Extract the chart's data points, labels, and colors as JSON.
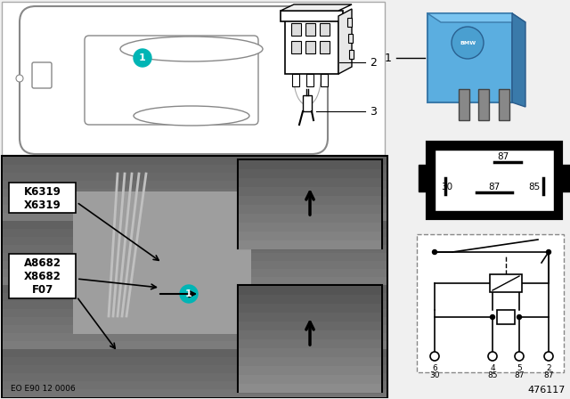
{
  "bg": "#f0f0f0",
  "white": "#ffffff",
  "black": "#000000",
  "teal": "#00b5b5",
  "blue_relay": "#5baee0",
  "gray_photo": "#888888",
  "footer": "EO E90 12 0006",
  "part_number": "476117",
  "labels_g1": [
    "K6319",
    "X6319"
  ],
  "labels_g2": [
    "A8682",
    "X8682",
    "F07"
  ],
  "pin_top_label": "87",
  "pin_mid_labels": [
    "30",
    "87",
    "85"
  ],
  "circuit_top_pins": [
    "6",
    "4",
    "5",
    "2"
  ],
  "circuit_bot_pins": [
    "30",
    "85",
    "87",
    "87"
  ]
}
